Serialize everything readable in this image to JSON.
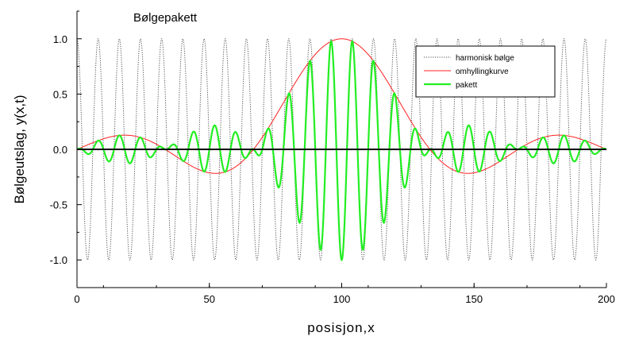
{
  "chart_data": {
    "type": "line",
    "title": "Bølgepakett",
    "xlabel": "posisjon,x",
    "ylabel": "Bølgeutslag, y(x,t)",
    "xlim": [
      0,
      200
    ],
    "ylim": [
      -1.25,
      1.25
    ],
    "x_ticks": [
      0,
      50,
      100,
      150,
      200
    ],
    "x_tick_labels": [
      "0",
      "50",
      "100",
      "150",
      "200"
    ],
    "y_ticks": [
      -1.0,
      -0.5,
      0.0,
      0.5,
      1.0
    ],
    "y_tick_labels": [
      "-1.0",
      "-0.5",
      "0.0",
      "0.5",
      "1.0"
    ],
    "grid": false,
    "legend_position": "top-right",
    "zero_line": true,
    "series": [
      {
        "name": "harmonisk bølge",
        "color": "#555555",
        "style": "dotted",
        "formula": "cos(2π·x/8)",
        "period": 8
      },
      {
        "name": "omhyllingkurve",
        "color": "#ff2020",
        "style": "solid",
        "formula": "sinc(π·(x−100)/33.333)",
        "center": 100,
        "width": 33.333
      },
      {
        "name": "pakett",
        "color": "#22ee22",
        "style": "solid",
        "formula": "harmonisk bølge × omhyllingkurve"
      }
    ]
  }
}
